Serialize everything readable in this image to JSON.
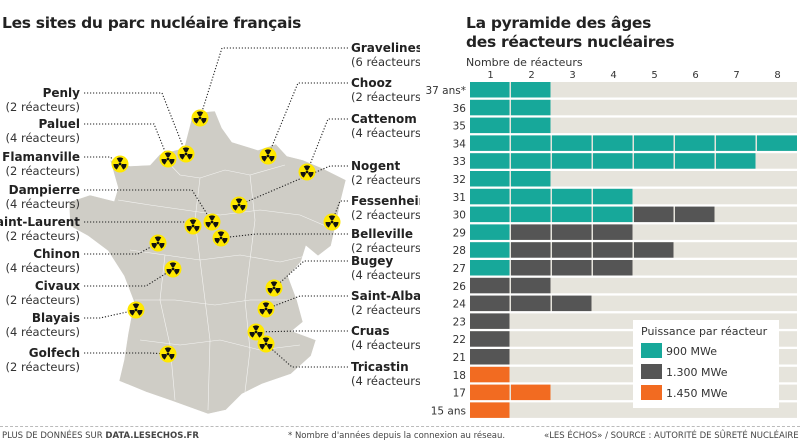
{
  "map": {
    "title": "Les sites du parc nucléaire français",
    "sites": [
      {
        "name": "Gravelines",
        "reactors": "(6 réacteurs)"
      },
      {
        "name": "Penly",
        "reactors": "(2 réacteurs)"
      },
      {
        "name": "Paluel",
        "reactors": "(4 réacteurs)"
      },
      {
        "name": "Flamanville",
        "reactors": "(2 réacteurs)"
      },
      {
        "name": "Chooz",
        "reactors": "(2 réacteurs)"
      },
      {
        "name": "Cattenom",
        "reactors": "(4 réacteurs)"
      },
      {
        "name": "Nogent",
        "reactors": "(2 réacteurs)"
      },
      {
        "name": "Fessenheim",
        "reactors": "(2 réacteurs)"
      },
      {
        "name": "Dampierre",
        "reactors": "(4 réacteurs)"
      },
      {
        "name": "Saint-Laurent",
        "reactors": "(2 réacteurs)"
      },
      {
        "name": "Belleville",
        "reactors": "(2 réacteurs)"
      },
      {
        "name": "Chinon",
        "reactors": "(4 réacteurs)"
      },
      {
        "name": "Civaux",
        "reactors": "(2 réacteurs)"
      },
      {
        "name": "Bugey",
        "reactors": "(4 réacteurs)"
      },
      {
        "name": "Saint-Alban",
        "reactors": "(2 réacteurs)"
      },
      {
        "name": "Blayais",
        "reactors": "(4 réacteurs)"
      },
      {
        "name": "Cruas",
        "reactors": "(4 réacteurs)"
      },
      {
        "name": "Tricastin",
        "reactors": "(4 réacteurs)"
      },
      {
        "name": "Golfech",
        "reactors": "(2 réacteurs)"
      }
    ],
    "marker_icon": "radiation-icon",
    "colors": {
      "land": "#cfcdc6",
      "marker": "#ffe800"
    }
  },
  "chart_data": {
    "type": "bar",
    "title": "La pyramide des âges des réacteurs nucléaires",
    "title_lines": [
      "La pyramide des âges",
      "des réacteurs nucléaires"
    ],
    "xlabel": "Nombre de réacteurs",
    "xticks": [
      "1",
      "2",
      "3",
      "4",
      "5",
      "6",
      "7",
      "8"
    ],
    "xlim": [
      0,
      8
    ],
    "stacked": true,
    "orientation": "horizontal",
    "categories": [
      "37 ans*",
      "36",
      "35",
      "34",
      "33",
      "32",
      "31",
      "30",
      "29",
      "28",
      "27",
      "26",
      "24",
      "23",
      "22",
      "21",
      "18",
      "17",
      "15 ans"
    ],
    "series": [
      {
        "name": "900 MWe",
        "color": "#17a89a",
        "values": [
          2,
          2,
          2,
          8,
          7,
          2,
          4,
          4,
          1,
          1,
          1,
          0,
          0,
          0,
          0,
          0,
          0,
          0,
          0
        ]
      },
      {
        "name": "1.300 MWe",
        "color": "#555555",
        "values": [
          0,
          0,
          0,
          0,
          0,
          0,
          0,
          2,
          3,
          4,
          3,
          2,
          3,
          1,
          1,
          1,
          0,
          0,
          0
        ]
      },
      {
        "name": "1.450 MWe",
        "color": "#f26b21",
        "values": [
          0,
          0,
          0,
          0,
          0,
          0,
          0,
          0,
          0,
          0,
          0,
          0,
          0,
          0,
          0,
          0,
          1,
          2,
          1
        ]
      }
    ],
    "legend": {
      "title": "Puissance par réacteur",
      "placement": "bottom-right"
    },
    "row_background": "#e6e4dc"
  },
  "footer": {
    "more_prefix": "PLUS DE DONNÉES SUR ",
    "more_link": "DATA.LESECHOS.FR",
    "note": "* Nombre d'années depuis la connexion au réseau.",
    "source": "«LES ÉCHOS» / SOURCE : AUTORITÉ DE SÛRETÉ NUCLÉAIRE"
  }
}
